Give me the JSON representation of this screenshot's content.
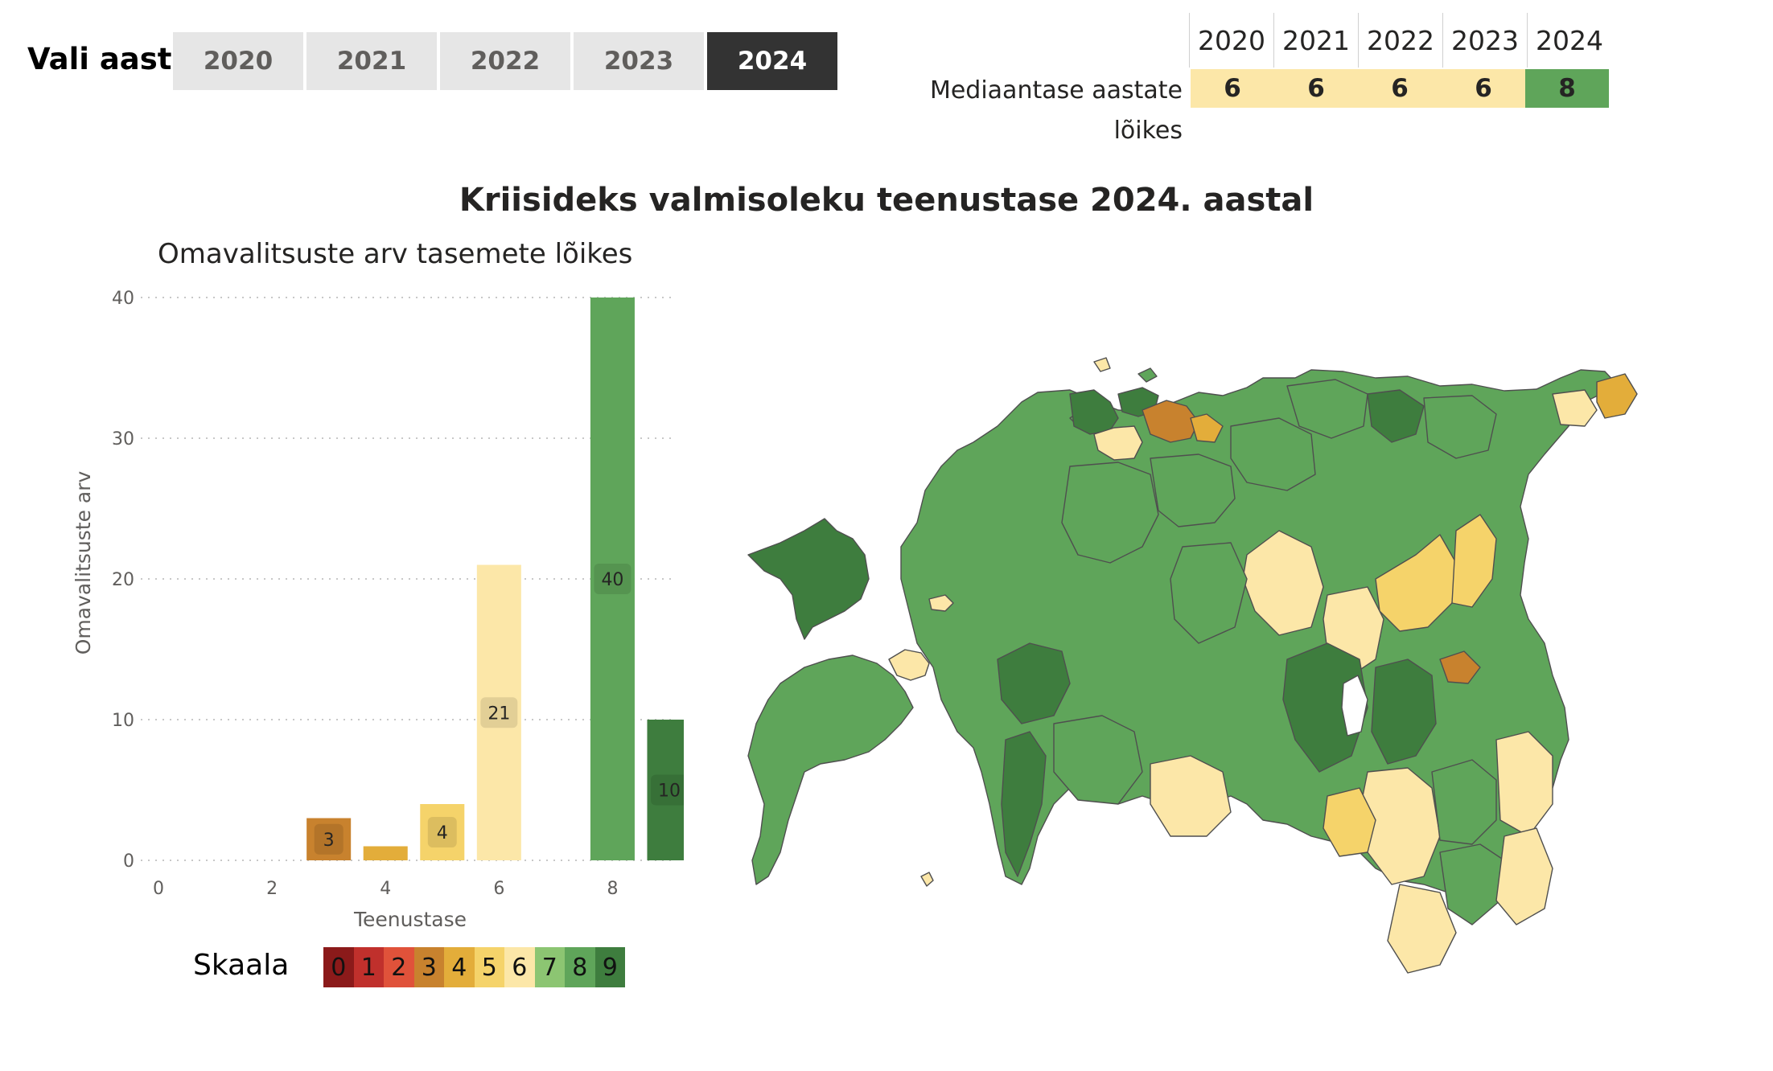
{
  "year_selector": {
    "label": "Vali aasta:",
    "years": [
      "2020",
      "2021",
      "2022",
      "2023",
      "2024"
    ],
    "selected": "2024"
  },
  "median_table": {
    "row_label": "Mediaantase aastate lõikes",
    "years": [
      "2020",
      "2021",
      "2022",
      "2023",
      "2024"
    ],
    "values": [
      "6",
      "6",
      "6",
      "6",
      "8"
    ]
  },
  "main_title": "Kriisideks valmisoleku teenustase 2024. aastal",
  "chart_data": {
    "type": "bar",
    "title": "Omavalitsuste arv tasemete lõikes",
    "xlabel": "Teenustase",
    "ylabel": "Omavalitsuste arv",
    "x": [
      3,
      4,
      5,
      6,
      8,
      9
    ],
    "values": [
      3,
      1,
      4,
      21,
      40,
      10
    ],
    "data_labels": [
      "3",
      "",
      "4",
      "21",
      "40",
      "10"
    ],
    "xlim": [
      0,
      9
    ],
    "ylim": [
      0,
      40
    ],
    "xticks": [
      "0",
      "2",
      "4",
      "6",
      "8"
    ],
    "yticks": [
      "0",
      "10",
      "20",
      "30",
      "40"
    ],
    "grid": "horizontal dotted"
  },
  "legend": {
    "label": "Skaala",
    "levels": [
      "0",
      "1",
      "2",
      "3",
      "4",
      "5",
      "6",
      "7",
      "8",
      "9"
    ]
  },
  "colors": {
    "level_0": "#8b1a1a",
    "level_1": "#c0302c",
    "level_2": "#e0523a",
    "level_3": "#c8822e",
    "level_4": "#e3ad3a",
    "level_5": "#f5d36a",
    "level_6": "#fce7a8",
    "level_7": "#8cc572",
    "level_8": "#5fa55a",
    "level_9": "#3e7d3e",
    "selected_tab": "#333333",
    "tab": "#e6e6e6"
  }
}
